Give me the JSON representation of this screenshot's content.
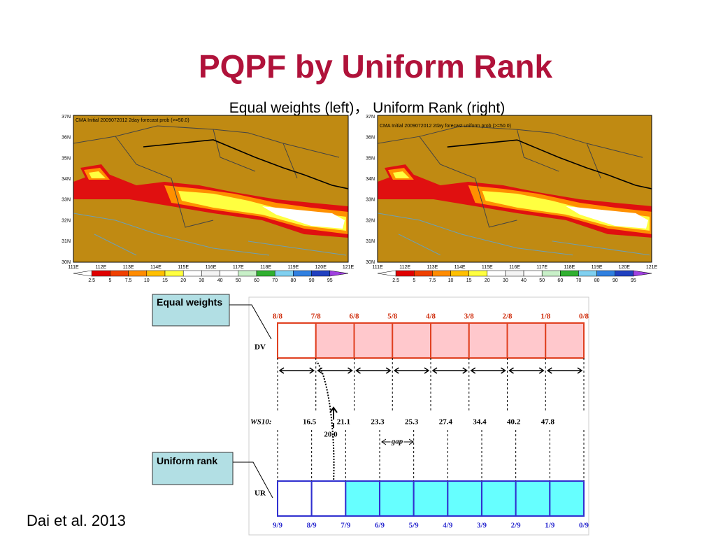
{
  "title": "PQPF by Uniform Rank",
  "subtitle": "Equal weights (left)，  Uniform Rank (right)",
  "maps": [
    {
      "caption": "CMA Initial 2009072012 2day forecast prob (>=50.0)"
    },
    {
      "caption": "CMA Initial 2009072012 2day forecast uniform prob (>=50.0)"
    }
  ],
  "latitudes": [
    "37N",
    "36N",
    "35N",
    "34N",
    "33N",
    "32N",
    "31N",
    "30N"
  ],
  "longitudes": [
    "111E",
    "112E",
    "113E",
    "114E",
    "115E",
    "116E",
    "117E",
    "118E",
    "119E",
    "120E",
    "121E"
  ],
  "colorbar": {
    "labels": [
      "2.5",
      "5",
      "7.5",
      "10",
      "15",
      "20",
      "30",
      "40",
      "50",
      "60",
      "70",
      "80",
      "90",
      "95"
    ],
    "colors": [
      "#ffffff",
      "#e00000",
      "#f04000",
      "#ff8c00",
      "#ffc000",
      "#ffff40",
      "#ffffff",
      "#f4f4f4",
      "#ffffff",
      "#c8f0c8",
      "#30b030",
      "#80d0f0",
      "#3080e0",
      "#2040c0",
      "#a040e0"
    ]
  },
  "diagram": {
    "label_box_top": "Equal weights",
    "label_box_bottom": "Uniform rank",
    "dv_label": "DV",
    "ur_label": "UR",
    "ws_label": "WS10:",
    "dv_fractions": [
      "8/8",
      "7/8",
      "6/8",
      "5/8",
      "4/8",
      "3/8",
      "2/8",
      "1/8",
      "0/8"
    ],
    "ur_fractions": [
      "9/9",
      "8/9",
      "7/9",
      "6/9",
      "5/9",
      "4/9",
      "3/9",
      "2/9",
      "1/9",
      "0/9"
    ],
    "ws_values": [
      "16.5",
      "21.1",
      "23.3",
      "25.3",
      "27.4",
      "34.4",
      "40.2",
      "47.8"
    ],
    "marker_value": "20.0",
    "gap_label": "gap"
  },
  "citation": "Dai et al. 2013"
}
